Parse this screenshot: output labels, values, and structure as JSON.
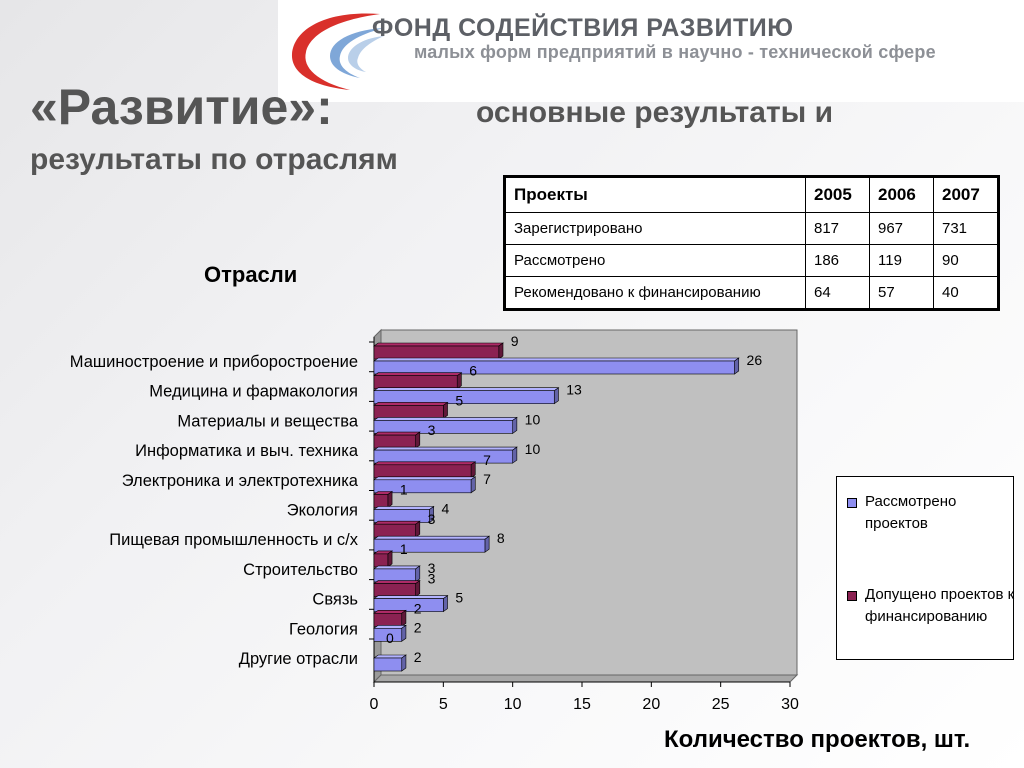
{
  "header": {
    "fund_line1": "ФОНД СОДЕЙСТВИЯ РАЗВИТИЮ",
    "fund_line2": "малых форм предприятий в научно - технической сфере"
  },
  "title": {
    "main": "«Развитие»:",
    "rest": "основные результаты и",
    "line2": "результаты по отраслям"
  },
  "section_label": "Отрасли",
  "table": {
    "headers": [
      "Проекты",
      "2005",
      "2006",
      "2007"
    ],
    "rows": [
      [
        "Зарегистрировано",
        "817",
        "967",
        "731"
      ],
      [
        "Рассмотрено",
        "186",
        "119",
        "90"
      ],
      [
        "Рекомендовано к финансированию",
        "64",
        "57",
        "40"
      ]
    ]
  },
  "chart_data": {
    "type": "bar",
    "orientation": "horizontal",
    "categories": [
      "Машиностроение и приборостроение",
      "Медицина и фармакология",
      "Материалы и вещества",
      "Информатика и выч. техника",
      "Электроника и электротехника",
      "Экология",
      "Пищевая промышленность и с/х",
      "Строительство",
      "Связь",
      "Геология",
      "Другие отрасли"
    ],
    "series": [
      {
        "name": "Допущено проектов к финансированию",
        "color": "#8b2252",
        "values": [
          9,
          6,
          5,
          3,
          7,
          1,
          3,
          1,
          3,
          2,
          0
        ]
      },
      {
        "name": "Рассмотрено проектов",
        "color": "#8e8ef0",
        "values": [
          26,
          13,
          10,
          10,
          7,
          4,
          8,
          3,
          5,
          2,
          2
        ]
      }
    ],
    "xticks": [
      "0",
      "5",
      "10",
      "15",
      "20",
      "25",
      "30"
    ],
    "xlim": [
      0,
      30
    ],
    "xlabel": "Количество проектов, шт.",
    "legend_position": "right",
    "grid": false
  },
  "legend": {
    "items": [
      {
        "label": "Рассмотрено проектов",
        "color": "#8e8ef0"
      },
      {
        "label": "Допущено проектов к финансированию",
        "color": "#8b2252"
      }
    ]
  }
}
